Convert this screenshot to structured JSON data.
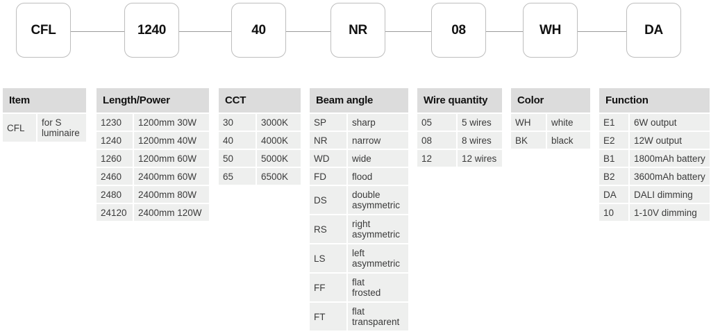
{
  "code_sequence": [
    "CFL",
    "1240",
    "40",
    "NR",
    "08",
    "WH",
    "DA"
  ],
  "tables": [
    {
      "header": "Item",
      "rows": [
        [
          "CFL",
          "for S\nluminaire"
        ]
      ]
    },
    {
      "header": "Length/Power",
      "rows": [
        [
          "1230",
          "1200mm 30W"
        ],
        [
          "1240",
          "1200mm 40W"
        ],
        [
          "1260",
          "1200mm 60W"
        ],
        [
          "2460",
          "2400mm 60W"
        ],
        [
          "2480",
          "2400mm 80W"
        ],
        [
          "24120",
          "2400mm 120W"
        ]
      ]
    },
    {
      "header": "CCT",
      "rows": [
        [
          "30",
          "3000K"
        ],
        [
          "40",
          "4000K"
        ],
        [
          "50",
          "5000K"
        ],
        [
          "65",
          "6500K"
        ]
      ]
    },
    {
      "header": "Beam angle",
      "rows": [
        [
          "SP",
          "sharp"
        ],
        [
          "NR",
          "narrow"
        ],
        [
          "WD",
          "wide"
        ],
        [
          "FD",
          "flood"
        ],
        [
          "DS",
          "double\nasymmetric"
        ],
        [
          "RS",
          "right\nasymmetric"
        ],
        [
          "LS",
          "left\nasymmetric"
        ],
        [
          "FF",
          "flat\nfrosted"
        ],
        [
          "FT",
          "flat\ntransparent"
        ]
      ]
    },
    {
      "header": "Wire quantity",
      "rows": [
        [
          "05",
          "5 wires"
        ],
        [
          "08",
          "8 wires"
        ],
        [
          "12",
          "12 wires"
        ]
      ]
    },
    {
      "header": "Color",
      "rows": [
        [
          "WH",
          "white"
        ],
        [
          "BK",
          "black"
        ]
      ]
    },
    {
      "header": "Function",
      "rows": [
        [
          "E1",
          "6W output"
        ],
        [
          "E2",
          "12W output"
        ],
        [
          "B1",
          "1800mAh battery"
        ],
        [
          "B2",
          "3600mAh battery"
        ],
        [
          "DA",
          "DALI dimming"
        ],
        [
          "10",
          "1-10V dimming"
        ]
      ]
    }
  ],
  "colors": {
    "header_bg": "#dcdcdc",
    "cell_bg": "#eeefee",
    "box_border": "#bdbdbd"
  }
}
